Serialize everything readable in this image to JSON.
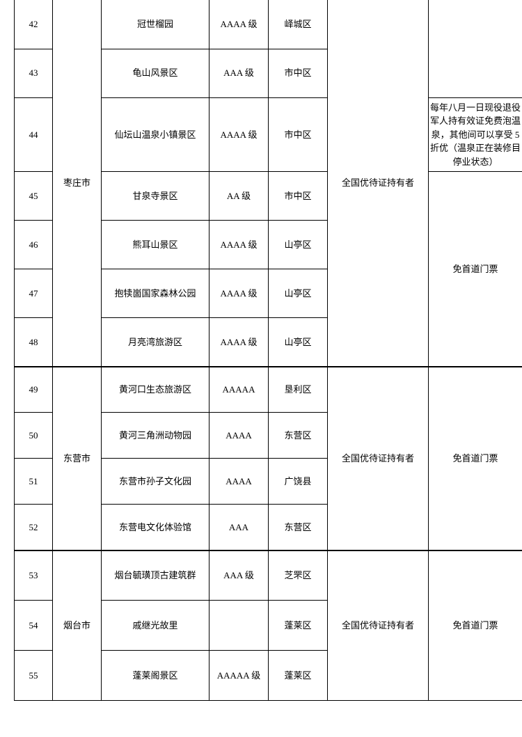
{
  "table": {
    "cities": {
      "zaozhuang": "枣庄市",
      "dongying": "东营市",
      "yantai": "烟台市"
    },
    "holder_text": "全国优待证持有者",
    "free_ticket": "免首道门票",
    "spring_note": "每年八月一日现役退役军人持有效证免费泡温泉，其他间可以享受 5 折优（温泉正在装修目停业状态）",
    "rows": [
      {
        "num": "42",
        "name": "冠世榴园",
        "level": "AAAA 级",
        "district": "峄城区"
      },
      {
        "num": "43",
        "name": "龟山风景区",
        "level": "AAA 级",
        "district": "市中区"
      },
      {
        "num": "44",
        "name": "仙坛山温泉小镇景区",
        "level": "AAAA 级",
        "district": "市中区"
      },
      {
        "num": "45",
        "name": "甘泉寺景区",
        "level": "AA 级",
        "district": "市中区"
      },
      {
        "num": "46",
        "name": "熊耳山景区",
        "level": "AAAA 级",
        "district": "山亭区"
      },
      {
        "num": "47",
        "name": "抱犊崮国家森林公园",
        "level": "AAAA 级",
        "district": "山亭区"
      },
      {
        "num": "48",
        "name": "月亮湾旅游区",
        "level": "AAAA 级",
        "district": "山亭区"
      },
      {
        "num": "49",
        "name": "黄河口生态旅游区",
        "level": "AAAAA",
        "district": "垦利区"
      },
      {
        "num": "50",
        "name": "黄河三角洲动物园",
        "level": "AAAA",
        "district": "东营区"
      },
      {
        "num": "51",
        "name": "东营市孙子文化园",
        "level": "AAAA",
        "district": "广饶县"
      },
      {
        "num": "52",
        "name": "东营电文化体验馆",
        "level": "AAA",
        "district": "东营区"
      },
      {
        "num": "53",
        "name": "烟台毓璜顶古建筑群",
        "level": "AAA  级",
        "district": "芝罘区"
      },
      {
        "num": "54",
        "name": "戚继光故里",
        "level": "",
        "district": "蓬莱区"
      },
      {
        "num": "55",
        "name": "蓬莱阁景区",
        "level": "AAAAA  级",
        "district": "蓬莱区"
      }
    ]
  },
  "colors": {
    "border": "#000000",
    "background": "#ffffff",
    "text": "#000000"
  }
}
